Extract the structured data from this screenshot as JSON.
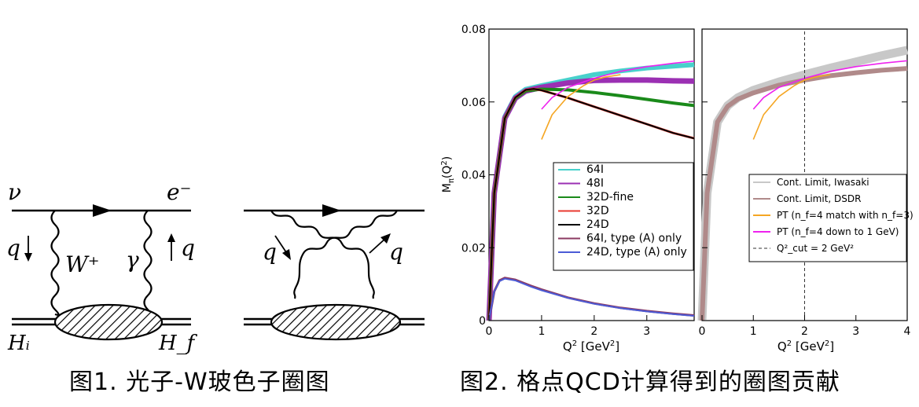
{
  "figure1": {
    "caption": "图1. 光子-W玻色子圈图",
    "labels": {
      "nu": "ν",
      "e_minus": "e⁻",
      "q_left": "q",
      "q_right": "q",
      "W_plus": "W⁺",
      "gamma": "γ",
      "H_i": "Hᵢ",
      "H_f": "H_f",
      "q_cross_left": "q",
      "q_cross_right": "q"
    }
  },
  "figure2": {
    "caption": "图2. 格点QCD计算得到的圈图贡献"
  },
  "chart_data": [
    {
      "type": "line",
      "panel": "left",
      "ylabel": "M_π(Q²)",
      "xlabel": "Q²  [GeV²]",
      "xlim": [
        0,
        3.9
      ],
      "ylim": [
        0,
        0.08
      ],
      "x_ticks": [
        "0",
        "1",
        "2",
        "3"
      ],
      "y_ticks": [
        "0",
        "0.02",
        "0.04",
        "0.06",
        "0.08"
      ],
      "legend_position": "lower-right",
      "series": [
        {
          "name": "64I",
          "color": "#48d1cc",
          "x": [
            0.0,
            0.1,
            0.3,
            0.5,
            0.7,
            1.0,
            1.5,
            2.0,
            2.5,
            3.0,
            3.5,
            3.9
          ],
          "y": [
            0.0,
            0.035,
            0.056,
            0.0615,
            0.0635,
            0.0645,
            0.066,
            0.0675,
            0.0685,
            0.0693,
            0.0698,
            0.0702
          ]
        },
        {
          "name": "48I",
          "color": "#9b30b3",
          "x": [
            0.0,
            0.1,
            0.3,
            0.5,
            0.7,
            1.0,
            1.5,
            2.0,
            2.5,
            3.0,
            3.5,
            3.9
          ],
          "y": [
            0.0,
            0.035,
            0.0555,
            0.061,
            0.063,
            0.064,
            0.0652,
            0.0659,
            0.066,
            0.066,
            0.0658,
            0.0657
          ]
        },
        {
          "name": "32D-fine",
          "color": "#1a8a1a",
          "x": [
            0.0,
            0.1,
            0.3,
            0.5,
            0.7,
            1.0,
            1.5,
            2.0,
            2.5,
            3.0,
            3.5,
            3.9
          ],
          "y": [
            0.0,
            0.035,
            0.0555,
            0.061,
            0.063,
            0.0635,
            0.0633,
            0.0626,
            0.0617,
            0.0607,
            0.0597,
            0.059
          ]
        },
        {
          "name": "32D",
          "color": "#e8392f",
          "x": [
            0.0,
            0.1,
            0.3,
            0.5,
            0.7,
            0.85,
            1.0,
            1.5,
            2.0,
            2.5,
            3.0,
            3.5,
            3.9
          ],
          "y": [
            0.0,
            0.035,
            0.0555,
            0.0612,
            0.0633,
            0.0636,
            0.0632,
            0.0611,
            0.0587,
            0.0563,
            0.0539,
            0.0515,
            0.05
          ]
        },
        {
          "name": "24D",
          "color": "#000000",
          "x": [
            0.0,
            0.1,
            0.3,
            0.5,
            0.7,
            0.85,
            1.0,
            1.5,
            2.0,
            2.5,
            3.0,
            3.5,
            3.9
          ],
          "y": [
            0.0,
            0.035,
            0.0555,
            0.0612,
            0.0633,
            0.0636,
            0.0632,
            0.0611,
            0.0587,
            0.0563,
            0.0539,
            0.0515,
            0.05
          ]
        },
        {
          "name": "64I, type (A) only",
          "color": "#8b3a62",
          "x": [
            0.0,
            0.1,
            0.2,
            0.3,
            0.5,
            0.8,
            1.0,
            1.5,
            2.0,
            2.5,
            3.0,
            3.5,
            3.9
          ],
          "y": [
            0.0,
            0.008,
            0.011,
            0.0117,
            0.0112,
            0.0095,
            0.0085,
            0.0063,
            0.0047,
            0.0035,
            0.0026,
            0.0019,
            0.0014
          ]
        },
        {
          "name": "24D, type (A) only",
          "color": "#4b5bd6",
          "x": [
            0.0,
            0.1,
            0.2,
            0.3,
            0.5,
            0.8,
            1.0,
            1.5,
            2.0,
            2.5,
            3.0,
            3.5,
            3.9
          ],
          "y": [
            0.0,
            0.008,
            0.0108,
            0.0115,
            0.011,
            0.0093,
            0.0083,
            0.0062,
            0.0046,
            0.0034,
            0.0025,
            0.0018,
            0.0013
          ]
        },
        {
          "name": "",
          "color": "#f5a623",
          "x": [
            1.0,
            1.2,
            1.5,
            1.8,
            2.0,
            2.2,
            2.5
          ],
          "y": [
            0.0497,
            0.0565,
            0.0615,
            0.0645,
            0.066,
            0.0668,
            0.0675
          ]
        },
        {
          "name": "",
          "color": "#ee22ee",
          "x": [
            1.0,
            1.2,
            1.5,
            2.0,
            2.5,
            3.0,
            3.5,
            3.9
          ],
          "y": [
            0.058,
            0.0612,
            0.064,
            0.0665,
            0.0684,
            0.0697,
            0.0706,
            0.0712
          ]
        }
      ]
    },
    {
      "type": "line",
      "panel": "right",
      "xlabel": "Q²  [GeV²]",
      "xlim": [
        0,
        4
      ],
      "ylim": [
        0,
        0.08
      ],
      "x_ticks": [
        "0",
        "1",
        "2",
        "3",
        "4"
      ],
      "legend_position": "lower-right",
      "series": [
        {
          "name": "Cont. Limit, Iwasaki",
          "color": "#c8c8c8",
          "x": [
            0.0,
            0.1,
            0.3,
            0.5,
            0.7,
            1.0,
            1.5,
            2.0,
            2.5,
            3.0,
            3.5,
            4.0
          ],
          "y": [
            0.0,
            0.035,
            0.0545,
            0.059,
            0.0612,
            0.0632,
            0.0655,
            0.0675,
            0.0693,
            0.071,
            0.0727,
            0.0742
          ]
        },
        {
          "name": "Cont. Limit, DSDR",
          "color": "#b08a8a",
          "x": [
            0.0,
            0.1,
            0.3,
            0.5,
            0.7,
            1.0,
            1.5,
            2.0,
            2.5,
            3.0,
            3.5,
            4.0
          ],
          "y": [
            0.0,
            0.035,
            0.0545,
            0.0588,
            0.0608,
            0.0625,
            0.0646,
            0.066,
            0.0672,
            0.068,
            0.0687,
            0.0692
          ]
        },
        {
          "name": "PT (n_f=4 match with n_f=3)",
          "color": "#f5a623",
          "x": [
            1.0,
            1.2,
            1.5,
            1.8,
            2.0,
            2.2,
            2.5
          ],
          "y": [
            0.0497,
            0.0565,
            0.0615,
            0.0645,
            0.066,
            0.0668,
            0.0675
          ]
        },
        {
          "name": "PT (n_f=4 down to 1 GeV)",
          "color": "#ee22ee",
          "x": [
            1.0,
            1.2,
            1.5,
            2.0,
            2.5,
            3.0,
            3.5,
            4.0
          ],
          "y": [
            0.058,
            0.0612,
            0.064,
            0.0665,
            0.0684,
            0.0697,
            0.0706,
            0.0713
          ]
        },
        {
          "name": "Q²_cut = 2 GeV²",
          "color": "#333333",
          "dashed": true,
          "x": [
            2,
            2
          ],
          "y": [
            0,
            0.08
          ]
        }
      ]
    }
  ]
}
